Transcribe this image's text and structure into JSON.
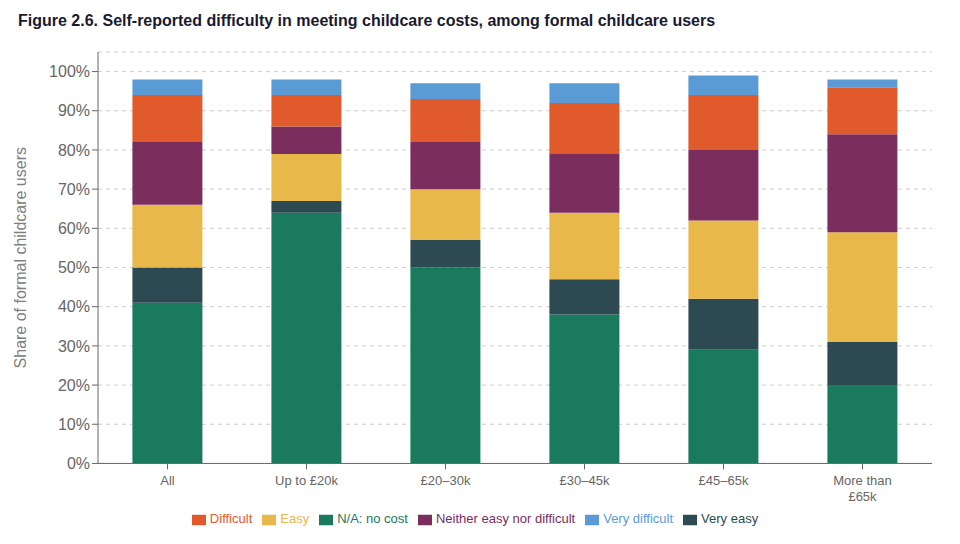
{
  "chart_data": {
    "type": "bar",
    "stacked": true,
    "title": "Figure 2.6. Self-reported difficulty in meeting childcare costs, among formal childcare users",
    "ylabel": "Share of formal childcare users",
    "categories": [
      "All",
      "Up to £20k",
      "£20–30k",
      "£30–45k",
      "£45–65k",
      "More than\n£65k"
    ],
    "series": [
      {
        "name": "N/A: no cost",
        "color": "#1a7a5e",
        "values": [
          41,
          64,
          50,
          38,
          29,
          20
        ]
      },
      {
        "name": "Very easy",
        "color": "#2d4a52",
        "values": [
          9,
          3,
          7,
          9,
          13,
          11
        ]
      },
      {
        "name": "Easy",
        "color": "#e8b84b",
        "values": [
          16,
          12,
          13,
          17,
          20,
          28
        ]
      },
      {
        "name": "Neither easy nor difficult",
        "color": "#7b2d5e",
        "values": [
          16,
          7,
          12,
          15,
          18,
          25
        ]
      },
      {
        "name": "Difficult",
        "color": "#e05a2b",
        "values": [
          12,
          8,
          11,
          13,
          14,
          12
        ]
      },
      {
        "name": "Very difficult",
        "color": "#5b9bd5",
        "values": [
          4,
          4,
          4,
          5,
          5,
          2
        ]
      }
    ],
    "ylim": [
      0,
      105
    ],
    "yticks": [
      {
        "value": 0,
        "label": "0%"
      },
      {
        "value": 10,
        "label": "10%"
      },
      {
        "value": 20,
        "label": "20%"
      },
      {
        "value": 30,
        "label": "30%"
      },
      {
        "value": 40,
        "label": "40%"
      },
      {
        "value": 50,
        "label": "50%"
      },
      {
        "value": 60,
        "label": "60%"
      },
      {
        "value": 70,
        "label": "70%"
      },
      {
        "value": 80,
        "label": "80%"
      },
      {
        "value": 90,
        "label": "90%"
      },
      {
        "value": 100,
        "label": "100%"
      }
    ],
    "grid": true,
    "legend": "bottom"
  }
}
